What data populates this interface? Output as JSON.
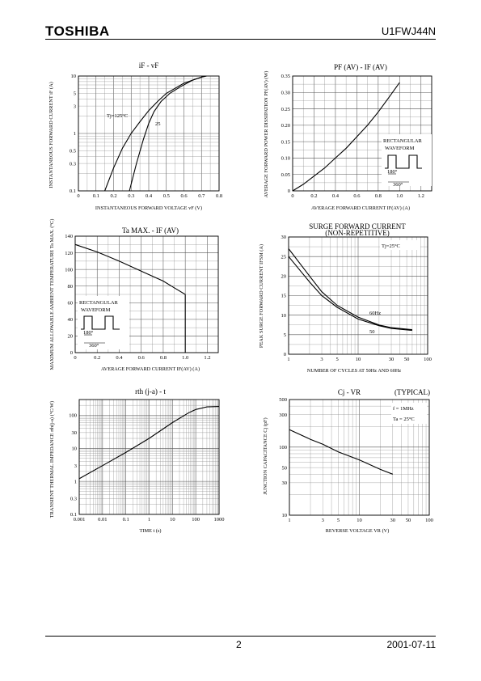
{
  "header": {
    "brand": "TOSHIBA",
    "part_number": "U1FWJ44N"
  },
  "footer": {
    "page": "2",
    "date": "2001-07-11"
  },
  "chart_data": [
    {
      "id": "c1",
      "type": "line",
      "title": "iF - vF",
      "xlabel": "INSTANTANEOUS FORWARD VOLTAGE   vF   (V)",
      "ylabel": "INSTANTANEOUS FORWARD CURRENT  iF  (A)",
      "x_scale": "linear",
      "y_scale": "log",
      "xlim": [
        0,
        0.8
      ],
      "ylim": [
        0.1,
        10
      ],
      "x_ticks": [
        "0",
        "0.1",
        "0.2",
        "0.3",
        "0.4",
        "0.5",
        "0.6",
        "0.7",
        "0.8"
      ],
      "y_ticks": [
        "0.1",
        "0.3",
        "0.5",
        "1",
        "3",
        "5",
        "10"
      ],
      "annotations": [
        "Tj=125°C",
        "25"
      ],
      "series": [
        {
          "x": [
            0.15,
            0.2,
            0.25,
            0.3,
            0.35,
            0.4,
            0.45,
            0.5,
            0.6,
            0.7,
            0.73
          ],
          "y": [
            0.1,
            0.25,
            0.55,
            1.0,
            1.6,
            2.5,
            3.6,
            5.0,
            7.5,
            9.6,
            10
          ]
        },
        {
          "x": [
            0.29,
            0.33,
            0.37,
            0.4,
            0.43,
            0.47,
            0.52,
            0.58,
            0.65,
            0.72
          ],
          "y": [
            0.1,
            0.3,
            0.8,
            1.5,
            2.4,
            3.6,
            5.0,
            6.5,
            8.5,
            10
          ]
        }
      ],
      "grid": true
    },
    {
      "id": "c2",
      "type": "line",
      "title": "PF (AV) - IF (AV)",
      "xlabel": "AVERAGE FORWARD CURRENT   IF(AV)   (A)",
      "ylabel": "AVERAGE FORWARD POWER DISSIPATION  PF(AV)  (W)",
      "x_scale": "linear",
      "y_scale": "linear",
      "xlim": [
        0,
        1.3
      ],
      "ylim": [
        0,
        0.35
      ],
      "x_ticks": [
        "0",
        "0.2",
        "0.4",
        "0.6",
        "0.8",
        "1.0",
        "1.2"
      ],
      "y_ticks": [
        "0",
        "0.05",
        "0.10",
        "0.15",
        "0.20",
        "0.25",
        "0.30",
        "0.35"
      ],
      "annotations": [
        "RECTANGULAR",
        "WAVEFORM",
        "180°",
        "360°"
      ],
      "series": [
        {
          "x": [
            0,
            0.1,
            0.2,
            0.3,
            0.4,
            0.5,
            0.6,
            0.7,
            0.8,
            0.9,
            1.0
          ],
          "y": [
            0,
            0.02,
            0.045,
            0.07,
            0.1,
            0.13,
            0.165,
            0.2,
            0.24,
            0.285,
            0.33
          ]
        }
      ],
      "grid": true
    },
    {
      "id": "c3",
      "type": "line",
      "title": "Ta MAX. - IF (AV)",
      "xlabel": "AVERAGE FORWARD CURRENT   IF(AV)   (A)",
      "ylabel": "MAXIMUM ALLOWABLE AMBIENT TEMPERATURE  Ta  MAX.  (°C)",
      "x_scale": "linear",
      "y_scale": "linear",
      "xlim": [
        0,
        1.3
      ],
      "ylim": [
        0,
        140
      ],
      "x_ticks": [
        "0",
        "0.2",
        "0.4",
        "0.6",
        "0.8",
        "1.0",
        "1.2"
      ],
      "y_ticks": [
        "0",
        "20",
        "40",
        "60",
        "80",
        "100",
        "120",
        "140"
      ],
      "annotations": [
        "RECTANGULAR",
        "WAVEFORM",
        "180°",
        "360°"
      ],
      "series": [
        {
          "x": [
            0,
            0.2,
            0.4,
            0.6,
            0.8,
            0.9,
            1.0,
            1.0
          ],
          "y": [
            130,
            121,
            110,
            98,
            86,
            78,
            70,
            0
          ]
        }
      ],
      "grid": true
    },
    {
      "id": "c4",
      "type": "line",
      "title": "SURGE FORWARD CURRENT",
      "subtitle": "(NON-REPETITIVE)",
      "xlabel": "NUMBER OF CYCLES AT 50Hz AND 60Hz",
      "ylabel": "PEAK SURGE FORWARD CURRENT  IFSM  (A)",
      "x_scale": "log",
      "y_scale": "linear",
      "xlim": [
        1,
        100
      ],
      "ylim": [
        0,
        30
      ],
      "x_ticks": [
        "1",
        "3",
        "5",
        "10",
        "30",
        "50",
        "100"
      ],
      "y_ticks": [
        "0",
        "5",
        "10",
        "15",
        "20",
        "25",
        "30"
      ],
      "annotations": [
        "Tj=25°C"
      ],
      "series": [
        {
          "name": "60Hz",
          "x": [
            1,
            2,
            3,
            5,
            10,
            20,
            30,
            60
          ],
          "y": [
            27,
            20,
            16,
            12.5,
            9.5,
            7.5,
            6.8,
            6.3
          ]
        },
        {
          "name": "50",
          "x": [
            1,
            2,
            3,
            5,
            10,
            20,
            30,
            60
          ],
          "y": [
            25,
            18.5,
            15,
            12,
            9,
            7.3,
            6.6,
            6.1
          ]
        }
      ],
      "grid": true
    },
    {
      "id": "c5",
      "type": "line",
      "title": "rth (j-a) - t",
      "xlabel": "TIME   t   (s)",
      "ylabel": "TRANSIENT THERMAL IMPEDANCE  rth(j-a)  (°C/W)",
      "x_scale": "log",
      "y_scale": "log",
      "xlim": [
        0.001,
        1000
      ],
      "ylim": [
        0.1,
        300
      ],
      "x_ticks": [
        "0.001",
        "0.01",
        "0.1",
        "1",
        "10",
        "100",
        "1000"
      ],
      "y_ticks": [
        "0.1",
        "0.3",
        "1",
        "3",
        "10",
        "30",
        "100"
      ],
      "series": [
        {
          "x": [
            0.001,
            0.01,
            0.1,
            1,
            10,
            50,
            100,
            300,
            1000
          ],
          "y": [
            1.2,
            3,
            7.5,
            20,
            60,
            120,
            150,
            180,
            185
          ]
        }
      ],
      "grid": true
    },
    {
      "id": "c6",
      "type": "line",
      "title": "Cj - VR",
      "subtitle": "(TYPICAL)",
      "xlabel": "REVERSE VOLTAGE   VR   (V)",
      "ylabel": "JUNCTION CAPACITANCE   Cj   (pF)",
      "x_scale": "log",
      "y_scale": "log",
      "xlim": [
        1,
        100
      ],
      "ylim": [
        10,
        500
      ],
      "x_ticks": [
        "1",
        "3",
        "5",
        "10",
        "30",
        "50",
        "100"
      ],
      "y_ticks": [
        "10",
        "30",
        "50",
        "100",
        "300",
        "500"
      ],
      "annotations": [
        "f = 1MHz",
        "Ta = 25°C"
      ],
      "series": [
        {
          "x": [
            1,
            2,
            3,
            5,
            10,
            20,
            30
          ],
          "y": [
            180,
            130,
            110,
            85,
            65,
            47,
            40
          ]
        }
      ],
      "grid": true
    }
  ]
}
